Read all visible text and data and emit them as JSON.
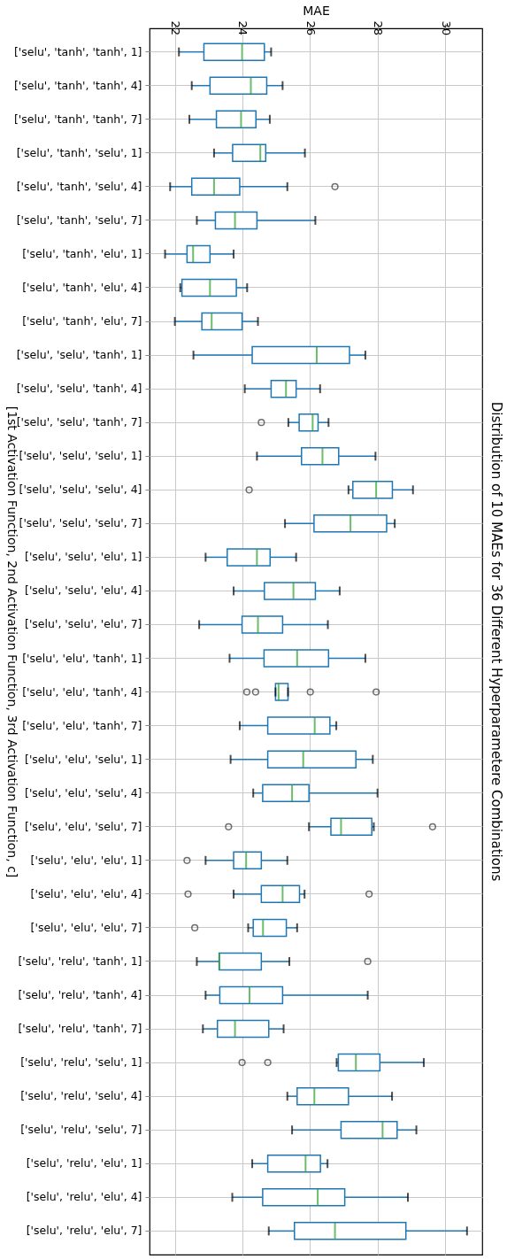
{
  "chart_data": {
    "type": "box",
    "title": "Distribution of 10 MAEs for 36 Different Hyperparametere Combinations",
    "xlabel": "MAE",
    "ylabel": "[1st Activation Function, 2nd Activation Function, 3rd Activation Function, c]",
    "orientation": "horizontal",
    "categories": [
      "['selu', 'tanh', 'tanh', 1]",
      "['selu', 'tanh', 'tanh', 4]",
      "['selu', 'tanh', 'tanh', 7]",
      "['selu', 'tanh', 'selu', 1]",
      "['selu', 'tanh', 'selu', 4]",
      "['selu', 'tanh', 'selu', 7]",
      "['selu', 'tanh', 'elu', 1]",
      "['selu', 'tanh', 'elu', 4]",
      "['selu', 'tanh', 'elu', 7]",
      "['selu', 'selu', 'tanh', 1]",
      "['selu', 'selu', 'tanh', 4]",
      "['selu', 'selu', 'tanh', 7]",
      "['selu', 'selu', 'selu', 1]",
      "['selu', 'selu', 'selu', 4]",
      "['selu', 'selu', 'selu', 7]",
      "['selu', 'selu', 'elu', 1]",
      "['selu', 'selu', 'elu', 4]",
      "['selu', 'selu', 'elu', 7]",
      "['selu', 'elu', 'tanh', 1]",
      "['selu', 'elu', 'tanh', 4]",
      "['selu', 'elu', 'tanh', 7]",
      "['selu', 'elu', 'selu', 1]",
      "['selu', 'elu', 'selu', 4]",
      "['selu', 'elu', 'selu', 7]",
      "['selu', 'elu', 'elu', 1]",
      "['selu', 'elu', 'elu', 4]",
      "['selu', 'elu', 'elu', 7]",
      "['selu', 'relu', 'tanh', 1]",
      "['selu', 'relu', 'tanh', 4]",
      "['selu', 'relu', 'tanh', 7]",
      "['selu', 'relu', 'selu', 1]",
      "['selu', 'relu', 'selu', 4]",
      "['selu', 'relu', 'selu', 7]",
      "['selu', 'relu', 'elu', 1]",
      "['selu', 'relu', 'elu', 4]",
      "['selu', 'relu', 'elu', 7]"
    ],
    "series": [
      {
        "color": "#1f77b4",
        "boxes": [
          {
            "low": 22.12,
            "q1": 22.86,
            "median": 23.99,
            "q3": 24.65,
            "high": 24.85
          },
          {
            "low": 22.5,
            "q1": 23.04,
            "median": 24.25,
            "q3": 24.72,
            "high": 25.19
          },
          {
            "low": 22.43,
            "q1": 23.23,
            "median": 23.96,
            "q3": 24.4,
            "high": 24.81
          },
          {
            "low": 23.16,
            "q1": 23.71,
            "median": 24.53,
            "q3": 24.69,
            "high": 25.85
          },
          {
            "low": 21.86,
            "q1": 22.5,
            "median": 23.16,
            "q3": 23.92,
            "high": 25.33,
            "outliers": [
              26.74
            ]
          },
          {
            "low": 22.65,
            "q1": 23.2,
            "median": 23.78,
            "q3": 24.43,
            "high": 26.16
          },
          {
            "low": 21.71,
            "q1": 22.36,
            "median": 22.54,
            "q3": 23.04,
            "high": 23.74
          },
          {
            "low": 22.16,
            "q1": 22.21,
            "median": 23.04,
            "q3": 23.82,
            "high": 24.14
          },
          {
            "low": 22.0,
            "q1": 22.8,
            "median": 23.09,
            "q3": 23.99,
            "high": 24.46
          },
          {
            "low": 22.55,
            "q1": 24.29,
            "median": 26.2,
            "q3": 27.17,
            "high": 27.64
          },
          {
            "low": 24.07,
            "q1": 24.85,
            "median": 25.29,
            "q3": 25.59,
            "high": 26.3
          },
          {
            "low": 25.36,
            "q1": 25.68,
            "median": 26.08,
            "q3": 26.24,
            "high": 26.55,
            "outliers": [
              24.56
            ]
          },
          {
            "low": 24.43,
            "q1": 25.75,
            "median": 26.37,
            "q3": 26.85,
            "high": 27.94
          },
          {
            "low": 27.14,
            "q1": 27.27,
            "median": 27.96,
            "q3": 28.44,
            "high": 29.05,
            "outliers": [
              24.2
            ]
          },
          {
            "low": 25.26,
            "q1": 26.12,
            "median": 27.2,
            "q3": 28.27,
            "high": 28.51
          },
          {
            "low": 22.91,
            "q1": 23.55,
            "median": 24.43,
            "q3": 24.82,
            "high": 25.59
          },
          {
            "low": 23.74,
            "q1": 24.65,
            "median": 25.51,
            "q3": 26.16,
            "high": 26.88
          },
          {
            "low": 22.72,
            "q1": 23.99,
            "median": 24.46,
            "q3": 25.19,
            "high": 26.53
          },
          {
            "low": 23.62,
            "q1": 24.64,
            "median": 25.62,
            "q3": 26.55,
            "high": 27.64
          },
          {
            "low": 24.98,
            "q1": 24.98,
            "median": 25.07,
            "q3": 25.35,
            "high": 25.35,
            "outliers": [
              24.13,
              24.39,
              26.01,
              27.96
            ]
          },
          {
            "low": 23.92,
            "q1": 24.75,
            "median": 26.14,
            "q3": 26.59,
            "high": 26.78
          },
          {
            "low": 23.65,
            "q1": 24.75,
            "median": 25.8,
            "q3": 27.36,
            "high": 27.86
          },
          {
            "low": 24.32,
            "q1": 24.6,
            "median": 25.47,
            "q3": 25.97,
            "high": 28.0
          },
          {
            "low": 25.97,
            "q1": 26.62,
            "median": 26.92,
            "q3": 27.83,
            "high": 27.89,
            "outliers": [
              23.59,
              29.63
            ]
          },
          {
            "low": 22.91,
            "q1": 23.74,
            "median": 24.11,
            "q3": 24.56,
            "high": 25.33,
            "outliers": [
              22.36
            ]
          },
          {
            "low": 23.74,
            "q1": 24.56,
            "median": 25.19,
            "q3": 25.69,
            "high": 25.84,
            "outliers": [
              22.39,
              27.75
            ]
          },
          {
            "low": 24.17,
            "q1": 24.32,
            "median": 24.61,
            "q3": 25.3,
            "high": 25.62,
            "outliers": [
              22.59
            ]
          },
          {
            "low": 22.65,
            "q1": 23.31,
            "median": 23.32,
            "q3": 24.56,
            "high": 25.39,
            "outliers": [
              27.71
            ]
          },
          {
            "low": 22.91,
            "q1": 23.33,
            "median": 24.21,
            "q3": 25.19,
            "high": 27.71
          },
          {
            "low": 22.83,
            "q1": 23.26,
            "median": 23.78,
            "q3": 24.78,
            "high": 25.22
          },
          {
            "low": 26.79,
            "q1": 26.84,
            "median": 27.36,
            "q3": 28.07,
            "high": 29.37,
            "outliers": [
              23.99,
              24.75
            ]
          },
          {
            "low": 25.33,
            "q1": 25.62,
            "median": 26.13,
            "q3": 27.14,
            "high": 28.43
          },
          {
            "low": 25.47,
            "q1": 26.92,
            "median": 28.15,
            "q3": 28.58,
            "high": 29.15
          },
          {
            "low": 24.29,
            "q1": 24.75,
            "median": 25.87,
            "q3": 26.31,
            "high": 26.52
          },
          {
            "low": 23.7,
            "q1": 24.6,
            "median": 26.23,
            "q3": 27.03,
            "high": 28.9
          },
          {
            "low": 24.78,
            "q1": 25.54,
            "median": 26.74,
            "q3": 28.84,
            "high": 30.65
          }
        ]
      }
    ],
    "xlim": [
      21.25,
      31.1
    ],
    "xticks": [
      22,
      24,
      26,
      28,
      30
    ],
    "grid": true
  }
}
